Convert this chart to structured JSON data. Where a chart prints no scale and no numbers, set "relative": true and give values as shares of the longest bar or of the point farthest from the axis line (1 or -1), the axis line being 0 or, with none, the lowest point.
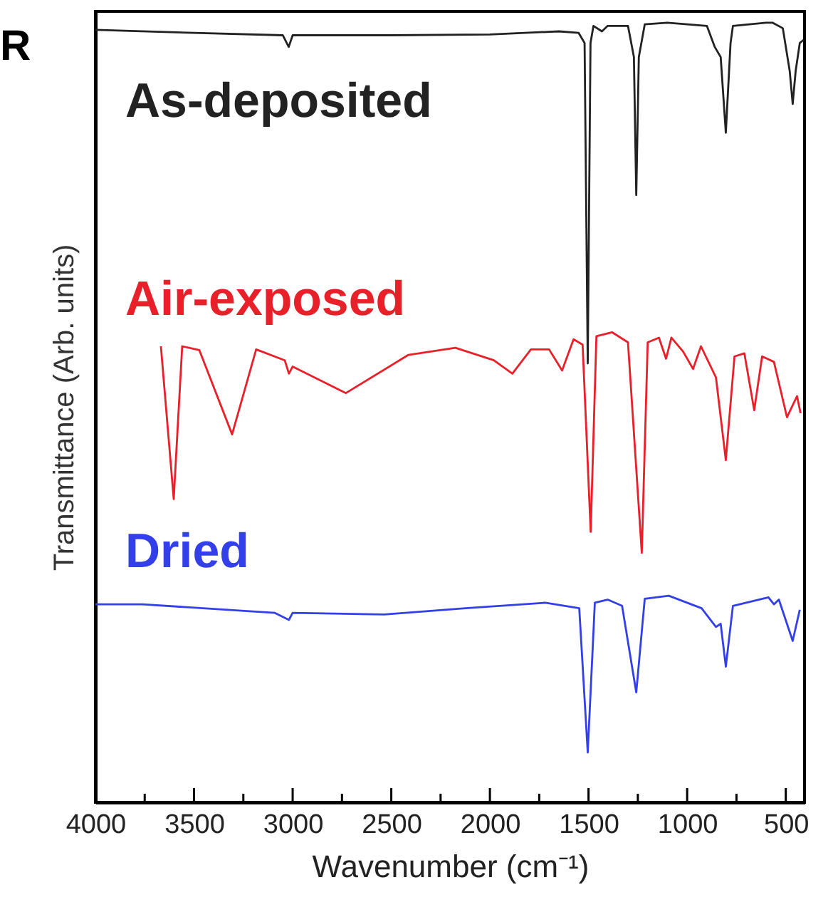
{
  "chart_data": {
    "type": "line",
    "relative": true,
    "xlabel": "Wavenumber (cm⁻¹)",
    "ylabel": "Transmittance (Arb. units)",
    "legend": false,
    "annotations": [
      "R"
    ],
    "xlim": [
      4000,
      405
    ],
    "xticks": [
      4000,
      {
        "value": 3750,
        "label": null
      },
      3500,
      {
        "value": 3250,
        "label": null
      },
      3000,
      {
        "value": 2750,
        "label": null
      },
      2500,
      {
        "value": 2250,
        "label": null
      },
      2000,
      {
        "value": 1750,
        "label": null
      },
      1500,
      {
        "value": 1250,
        "label": null
      },
      1000,
      {
        "value": 750,
        "label": null
      },
      500
    ],
    "series": [
      {
        "name": "As-deposited",
        "color": "#222222",
        "x": [
          4000,
          3500,
          3050,
          3020,
          3000,
          2500,
          2000,
          1650,
          1550,
          1520,
          1504,
          1490,
          1475,
          1432,
          1403,
          1300,
          1270,
          1258,
          1245,
          1215,
          1100,
          900,
          860,
          830,
          804,
          780,
          768,
          600,
          566,
          515,
          480,
          465,
          450,
          429,
          410
        ],
        "values": [
          0.991,
          0.987,
          0.984,
          0.969,
          0.984,
          0.984,
          0.985,
          0.989,
          0.987,
          0.974,
          0.563,
          0.974,
          0.996,
          0.989,
          0.996,
          0.996,
          0.956,
          0.779,
          0.956,
          0.998,
          1.0,
          0.996,
          0.969,
          0.956,
          0.859,
          0.974,
          0.996,
          1.0,
          1.0,
          0.993,
          0.938,
          0.896,
          0.938,
          0.974,
          0.978
        ]
      },
      {
        "name": "Air-exposed",
        "color": "#e8202a",
        "x": [
          3668,
          3603,
          3560,
          3473,
          3307,
          3185,
          3040,
          3019,
          3000,
          2730,
          2413,
          2175,
          1980,
          1886,
          1792,
          1700,
          1634,
          1576,
          1530,
          1489,
          1460,
          1381,
          1300,
          1230,
          1200,
          1143,
          1107,
          1080,
          1020,
          970,
          930,
          854,
          804,
          760,
          710,
          660,
          620,
          560,
          494,
          443,
          425
        ],
        "values": [
          0.585,
          0.389,
          0.585,
          0.58,
          0.472,
          0.581,
          0.567,
          0.55,
          0.559,
          0.525,
          0.574,
          0.583,
          0.567,
          0.55,
          0.581,
          0.581,
          0.554,
          0.594,
          0.587,
          0.347,
          0.598,
          0.603,
          0.59,
          0.32,
          0.59,
          0.596,
          0.569,
          0.596,
          0.578,
          0.556,
          0.585,
          0.545,
          0.439,
          0.572,
          0.576,
          0.503,
          0.572,
          0.565,
          0.494,
          0.521,
          0.499
        ]
      },
      {
        "name": "Dried",
        "color": "#3340e8",
        "x": [
          4000,
          3762,
          3090,
          3019,
          3000,
          2535,
          2124,
          1720,
          1547,
          1504,
          1468,
          1403,
          1330,
          1258,
          1215,
          1093,
          927,
          854,
          830,
          804,
          768,
          588,
          560,
          535,
          465,
          429
        ],
        "values": [
          0.254,
          0.254,
          0.243,
          0.234,
          0.243,
          0.241,
          0.249,
          0.256,
          0.249,
          0.064,
          0.256,
          0.26,
          0.252,
          0.141,
          0.261,
          0.265,
          0.249,
          0.225,
          0.229,
          0.174,
          0.252,
          0.263,
          0.254,
          0.26,
          0.207,
          0.247
        ]
      }
    ]
  }
}
